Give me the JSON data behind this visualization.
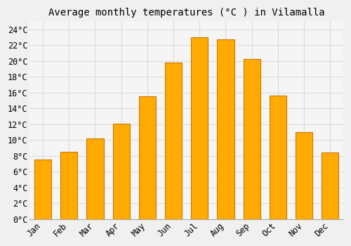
{
  "title": "Average monthly temperatures (°C ) in Vilamalla",
  "months": [
    "Jan",
    "Feb",
    "Mar",
    "Apr",
    "May",
    "Jun",
    "Jul",
    "Aug",
    "Sep",
    "Oct",
    "Nov",
    "Dec"
  ],
  "values": [
    7.5,
    8.5,
    10.2,
    12.1,
    15.5,
    19.8,
    23.0,
    22.7,
    20.2,
    15.6,
    11.0,
    8.4
  ],
  "bar_color": "#FFAA00",
  "bar_edge_color": "#CC7700",
  "background_color": "#F0F0F0",
  "plot_bg_color": "#F5F5F5",
  "grid_color": "#DDDDDD",
  "ylim": [
    0,
    25
  ],
  "yticks": [
    0,
    2,
    4,
    6,
    8,
    10,
    12,
    14,
    16,
    18,
    20,
    22,
    24
  ],
  "title_fontsize": 10,
  "tick_fontsize": 8.5,
  "font_family": "monospace",
  "bar_width": 0.65
}
